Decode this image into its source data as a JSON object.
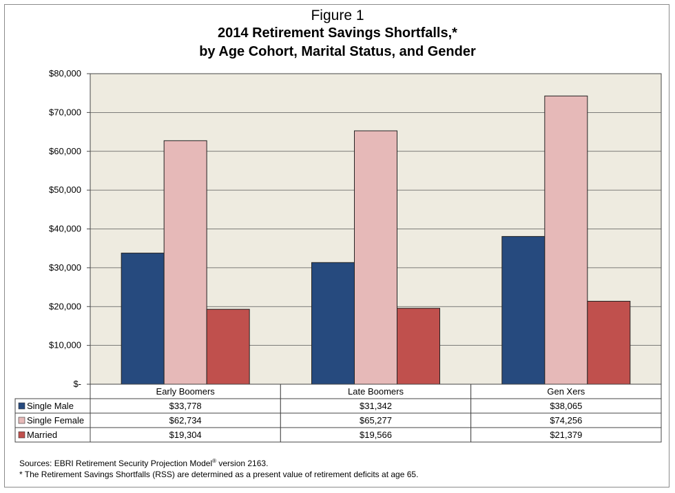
{
  "figure_label": "Figure 1",
  "title_line1": "2014 Retirement Savings Shortfalls,*",
  "title_line2": "by Age Cohort, Marital Status, and Gender",
  "notes": {
    "source_prefix": "Sources: EBRI Retirement Security Projection Model",
    "source_sup": "®",
    "source_suffix": " version 2163.",
    "footnote": "* The Retirement Savings Shortfalls (RSS) are determined as a present value of retirement deficits at age 65."
  },
  "colors": {
    "plot_bg": "#eeebe0",
    "single_male": "#264a7e",
    "single_female": "#e6b9b8",
    "married": "#c0504d"
  },
  "chart_data": {
    "type": "bar",
    "categories": [
      "Early Boomers",
      "Late Boomers",
      "Gen Xers"
    ],
    "series": [
      {
        "name": "Single Male",
        "values": [
          33778,
          31342,
          38065
        ],
        "labels": [
          "$33,778",
          "$31,342",
          "$38,065"
        ]
      },
      {
        "name": "Single Female",
        "values": [
          62734,
          65277,
          74256
        ],
        "labels": [
          "$62,734",
          "$65,277",
          "$74,256"
        ]
      },
      {
        "name": "Married",
        "values": [
          19304,
          19566,
          21379
        ],
        "labels": [
          "$19,304",
          "$19,566",
          "$21,379"
        ]
      }
    ],
    "y_ticks": [
      0,
      10000,
      20000,
      30000,
      40000,
      50000,
      60000,
      70000,
      80000
    ],
    "y_tick_labels": [
      "$-",
      "$10,000",
      "$20,000",
      "$30,000",
      "$40,000",
      "$50,000",
      "$60,000",
      "$70,000",
      "$80,000"
    ],
    "ylim": [
      0,
      80000
    ],
    "grid": true,
    "legend": "data table below chart"
  }
}
